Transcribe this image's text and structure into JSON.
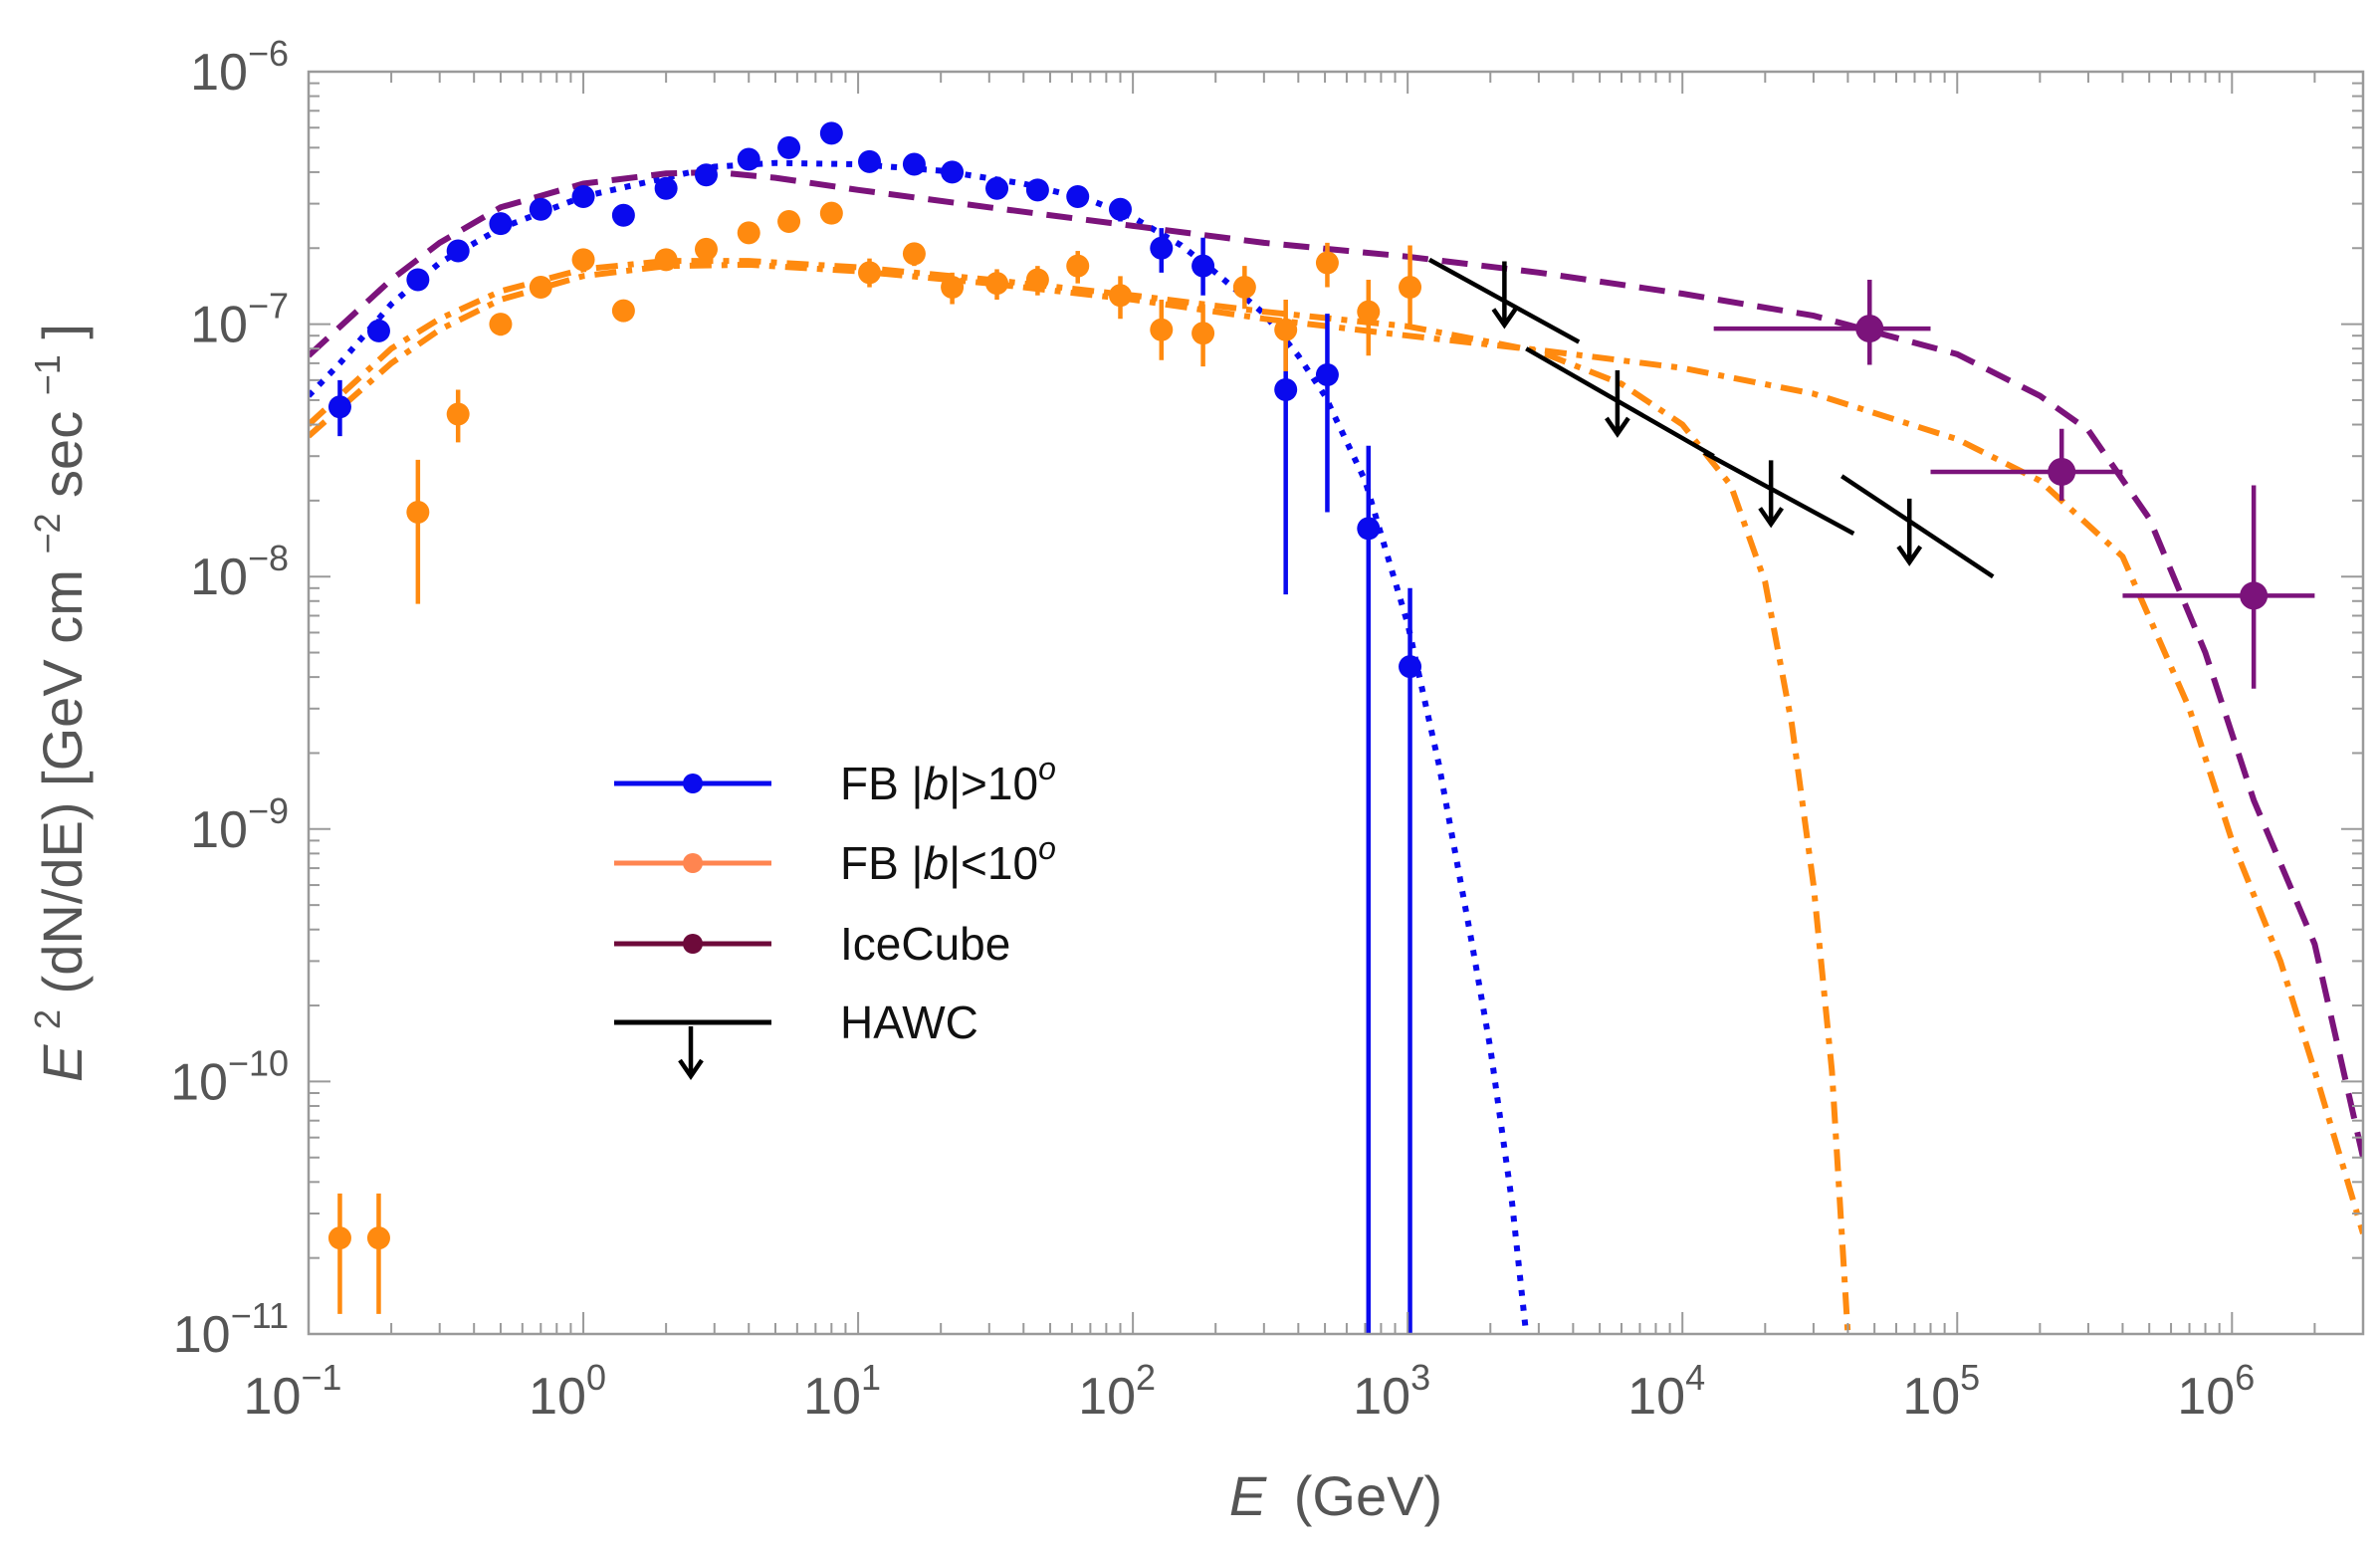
{
  "chart_data": {
    "type": "scatter",
    "xscale": "log",
    "yscale": "log",
    "xlim": [
      0.1,
      3000000
    ],
    "ylim": [
      1e-11,
      1e-06
    ],
    "xlabel": {
      "main": "E",
      "unit": "(GeV)"
    },
    "ylabel": {
      "sym": "E",
      "sup1": "2",
      "mid": "(dN/dE) [GeV cm",
      "sup2": "−2",
      "mid2": "sec",
      "sup3": "−1",
      "end": "]"
    },
    "x_ticks": [
      {
        "value": 0.1,
        "base": "10",
        "exp": "−1"
      },
      {
        "value": 1,
        "base": "10",
        "exp": "0"
      },
      {
        "value": 10,
        "base": "10",
        "exp": "1"
      },
      {
        "value": 100,
        "base": "10",
        "exp": "2"
      },
      {
        "value": 1000,
        "base": "10",
        "exp": "3"
      },
      {
        "value": 10000,
        "base": "10",
        "exp": "4"
      },
      {
        "value": 100000,
        "base": "10",
        "exp": "5"
      },
      {
        "value": 1000000,
        "base": "10",
        "exp": "6"
      }
    ],
    "y_ticks": [
      {
        "value": 1e-11,
        "base": "10",
        "exp": "−11"
      },
      {
        "value": 1e-10,
        "base": "10",
        "exp": "−10"
      },
      {
        "value": 1e-09,
        "base": "10",
        "exp": "−9"
      },
      {
        "value": 1e-08,
        "base": "10",
        "exp": "−8"
      },
      {
        "value": 1e-07,
        "base": "10",
        "exp": "−7"
      },
      {
        "value": 1e-06,
        "base": "10",
        "exp": "−6"
      }
    ],
    "colors": {
      "fb_high": "#0a0aee",
      "fb_low": "#ff8a0f",
      "icecube": "#7b137b",
      "hawc": "#000000",
      "legend_fb_low": "#ff8550",
      "legend_icecube": "#6d0a3a",
      "axis": "#9a9a9a",
      "label": "#555555"
    },
    "legend": [
      {
        "label": "FB |b|>10",
        "sup": "o",
        "key": "fb_high"
      },
      {
        "label": "FB |b|<10",
        "sup": "o",
        "key": "fb_low"
      },
      {
        "label": "IceCube",
        "sup": "",
        "key": "icecube"
      },
      {
        "label": "HAWC",
        "sup": "",
        "key": "hawc"
      }
    ],
    "series": [
      {
        "name": "FB |b|>10o",
        "key": "fb_high",
        "points": [
          {
            "x": 0.13,
            "y": 4.7e-08,
            "ylo": 3.6e-08,
            "yhi": 6e-08
          },
          {
            "x": 0.18,
            "y": 9.4e-08,
            "ylo": 8.5e-08,
            "yhi": 1.05e-07
          },
          {
            "x": 0.25,
            "y": 1.5e-07,
            "ylo": 1.38e-07,
            "yhi": 1.62e-07
          },
          {
            "x": 0.35,
            "y": 1.95e-07,
            "ylo": 1.8e-07,
            "yhi": 2.1e-07
          },
          {
            "x": 0.5,
            "y": 2.5e-07,
            "ylo": 2.35e-07,
            "yhi": 2.7e-07
          },
          {
            "x": 0.7,
            "y": 2.85e-07,
            "ylo": 2.7e-07,
            "yhi": 3e-07
          },
          {
            "x": 1.0,
            "y": 3.2e-07,
            "ylo": 3.05e-07,
            "yhi": 3.35e-07
          },
          {
            "x": 1.4,
            "y": 2.7e-07,
            "ylo": 2.55e-07,
            "yhi": 2.85e-07
          },
          {
            "x": 2.0,
            "y": 3.45e-07,
            "ylo": 3.3e-07,
            "yhi": 3.6e-07
          },
          {
            "x": 2.8,
            "y": 3.9e-07,
            "ylo": 3.7e-07,
            "yhi": 4.1e-07
          },
          {
            "x": 4.0,
            "y": 4.5e-07,
            "ylo": 4.3e-07,
            "yhi": 4.7e-07
          },
          {
            "x": 5.6,
            "y": 5e-07,
            "ylo": 4.8e-07,
            "yhi": 5.25e-07
          },
          {
            "x": 8.0,
            "y": 5.7e-07,
            "ylo": 5.45e-07,
            "yhi": 5.95e-07
          },
          {
            "x": 11,
            "y": 4.4e-07,
            "ylo": 4.2e-07,
            "yhi": 4.6e-07
          },
          {
            "x": 16,
            "y": 4.3e-07,
            "ylo": 4.1e-07,
            "yhi": 4.5e-07
          },
          {
            "x": 22,
            "y": 4e-07,
            "ylo": 3.8e-07,
            "yhi": 4.2e-07
          },
          {
            "x": 32,
            "y": 3.45e-07,
            "ylo": 3.25e-07,
            "yhi": 3.65e-07
          },
          {
            "x": 45,
            "y": 3.4e-07,
            "ylo": 3.2e-07,
            "yhi": 3.6e-07
          },
          {
            "x": 63,
            "y": 3.2e-07,
            "ylo": 2.95e-07,
            "yhi": 3.45e-07
          },
          {
            "x": 90,
            "y": 2.85e-07,
            "ylo": 2.55e-07,
            "yhi": 3.15e-07
          },
          {
            "x": 127,
            "y": 2e-07,
            "ylo": 1.6e-07,
            "yhi": 2.4e-07
          },
          {
            "x": 180,
            "y": 1.7e-07,
            "ylo": 1.3e-07,
            "yhi": 2.2e-07
          },
          {
            "x": 360,
            "y": 5.5e-08,
            "ylo": 8.5e-09,
            "yhi": 1e-07
          },
          {
            "x": 510,
            "y": 6.3e-08,
            "ylo": 1.8e-08,
            "yhi": 1.1e-07
          },
          {
            "x": 720,
            "y": 1.55e-08,
            "ylo": 1e-11,
            "yhi": 3.3e-08
          },
          {
            "x": 1020,
            "y": 4.4e-09,
            "ylo": 1e-11,
            "yhi": 9e-09
          }
        ]
      },
      {
        "name": "FB |b|<10o",
        "key": "fb_low",
        "points": [
          {
            "x": 0.13,
            "y": 2.4e-11,
            "ylo": 1.2e-11,
            "yhi": 3.6e-11
          },
          {
            "x": 0.18,
            "y": 2.4e-11,
            "ylo": 1.2e-11,
            "yhi": 3.6e-11
          },
          {
            "x": 0.25,
            "y": 1.8e-08,
            "ylo": 7.8e-09,
            "yhi": 2.9e-08
          },
          {
            "x": 0.35,
            "y": 4.4e-08,
            "ylo": 3.4e-08,
            "yhi": 5.5e-08
          },
          {
            "x": 0.5,
            "y": 1e-07,
            "ylo": 9e-08,
            "yhi": 1.1e-07
          },
          {
            "x": 0.7,
            "y": 1.4e-07,
            "ylo": 1.3e-07,
            "yhi": 1.52e-07
          },
          {
            "x": 1.0,
            "y": 1.8e-07,
            "ylo": 1.68e-07,
            "yhi": 1.92e-07
          },
          {
            "x": 1.4,
            "y": 1.13e-07,
            "ylo": 1.02e-07,
            "yhi": 1.25e-07
          },
          {
            "x": 2.0,
            "y": 1.8e-07,
            "ylo": 1.68e-07,
            "yhi": 1.92e-07
          },
          {
            "x": 2.8,
            "y": 1.98e-07,
            "ylo": 1.85e-07,
            "yhi": 2.1e-07
          },
          {
            "x": 4.0,
            "y": 2.3e-07,
            "ylo": 2.15e-07,
            "yhi": 2.45e-07
          },
          {
            "x": 5.6,
            "y": 2.55e-07,
            "ylo": 2.4e-07,
            "yhi": 2.7e-07
          },
          {
            "x": 8.0,
            "y": 2.75e-07,
            "ylo": 2.6e-07,
            "yhi": 2.9e-07
          },
          {
            "x": 11,
            "y": 1.6e-07,
            "ylo": 1.4e-07,
            "yhi": 1.82e-07
          },
          {
            "x": 16,
            "y": 1.9e-07,
            "ylo": 1.7e-07,
            "yhi": 2.1e-07
          },
          {
            "x": 22,
            "y": 1.4e-07,
            "ylo": 1.2e-07,
            "yhi": 1.6e-07
          },
          {
            "x": 32,
            "y": 1.45e-07,
            "ylo": 1.25e-07,
            "yhi": 1.65e-07
          },
          {
            "x": 45,
            "y": 1.5e-07,
            "ylo": 1.3e-07,
            "yhi": 1.7e-07
          },
          {
            "x": 63,
            "y": 1.7e-07,
            "ylo": 1.45e-07,
            "yhi": 1.95e-07
          },
          {
            "x": 90,
            "y": 1.3e-07,
            "ylo": 1.05e-07,
            "yhi": 1.55e-07
          },
          {
            "x": 127,
            "y": 9.5e-08,
            "ylo": 7.2e-08,
            "yhi": 1.25e-07
          },
          {
            "x": 180,
            "y": 9.2e-08,
            "ylo": 6.8e-08,
            "yhi": 1.2e-07
          },
          {
            "x": 255,
            "y": 1.4e-07,
            "ylo": 1.15e-07,
            "yhi": 1.7e-07
          },
          {
            "x": 360,
            "y": 9.5e-08,
            "ylo": 6.5e-08,
            "yhi": 1.25e-07
          },
          {
            "x": 510,
            "y": 1.75e-07,
            "ylo": 1.4e-07,
            "yhi": 2.1e-07
          },
          {
            "x": 720,
            "y": 1.12e-07,
            "ylo": 7.5e-08,
            "yhi": 1.5e-07
          },
          {
            "x": 1020,
            "y": 1.4e-07,
            "ylo": 1e-07,
            "yhi": 2.05e-07
          }
        ]
      },
      {
        "name": "IceCube",
        "key": "icecube",
        "points": [
          {
            "x": 48000,
            "y": 9.6e-08,
            "ylo": 6.9e-08,
            "yhi": 1.5e-07,
            "xlo": 13000,
            "xhi": 80000
          },
          {
            "x": 240000,
            "y": 2.6e-08,
            "ylo": 2e-08,
            "yhi": 3.85e-08,
            "xlo": 80000,
            "xhi": 400000
          },
          {
            "x": 1200000,
            "y": 8.4e-09,
            "ylo": 3.6e-09,
            "yhi": 2.3e-08,
            "xlo": 400000,
            "xhi": 2000000
          }
        ]
      },
      {
        "name": "HAWC",
        "key": "hawc",
        "upper_limits": [
          {
            "x1": 1200,
            "x2": 4200,
            "y1": 1.8e-07,
            "y2": 8.5e-08,
            "xa": 2250,
            "ya": 1.35e-07
          },
          {
            "x1": 2700,
            "x2": 13000,
            "y1": 8e-08,
            "y2": 3e-08,
            "xa": 5800,
            "ya": 5e-08
          },
          {
            "x1": 12000,
            "x2": 42000,
            "y1": 3.1e-08,
            "y2": 1.48e-08,
            "xa": 21000,
            "ya": 2.2e-08
          },
          {
            "x1": 38000,
            "x2": 135000,
            "y1": 2.5e-08,
            "y2": 1e-08,
            "xa": 67000,
            "ya": 1.55e-08
          }
        ]
      }
    ],
    "model_curves": [
      {
        "name": "FB |b|>10o model",
        "key": "fb_high",
        "style": "dotted",
        "points": [
          [
            0.1,
            5.2e-08
          ],
          [
            0.13,
            7e-08
          ],
          [
            0.2,
            1.2e-07
          ],
          [
            0.3,
            1.75e-07
          ],
          [
            0.5,
            2.4e-07
          ],
          [
            1,
            3.2e-07
          ],
          [
            2,
            3.8e-07
          ],
          [
            3,
            4.2e-07
          ],
          [
            5,
            4.35e-07
          ],
          [
            10,
            4.3e-07
          ],
          [
            20,
            4.05e-07
          ],
          [
            40,
            3.6e-07
          ],
          [
            70,
            3.1e-07
          ],
          [
            100,
            2.65e-07
          ],
          [
            150,
            2.05e-07
          ],
          [
            200,
            1.6e-07
          ],
          [
            300,
            1.1e-07
          ],
          [
            400,
            7.5e-08
          ],
          [
            500,
            5.2e-08
          ],
          [
            700,
            2.4e-08
          ],
          [
            1000,
            6.5e-09
          ],
          [
            1300,
            1.8e-09
          ],
          [
            1700,
            3.7e-10
          ],
          [
            2000,
            1.35e-10
          ],
          [
            2400,
            3.3e-11
          ],
          [
            2700,
            1e-11
          ]
        ]
      },
      {
        "name": "FB |b|<10o model A",
        "key": "fb_low",
        "style": "dashdot",
        "points": [
          [
            0.1,
            4e-08
          ],
          [
            0.2,
            8e-08
          ],
          [
            0.3,
            1.05e-07
          ],
          [
            0.5,
            1.35e-07
          ],
          [
            1,
            1.65e-07
          ],
          [
            2,
            1.78e-07
          ],
          [
            4,
            1.78e-07
          ],
          [
            10,
            1.68e-07
          ],
          [
            30,
            1.5e-07
          ],
          [
            100,
            1.3e-07
          ],
          [
            300,
            1.12e-07
          ],
          [
            1000,
            9.8e-08
          ],
          [
            3000,
            7.8e-08
          ],
          [
            6000,
            5.8e-08
          ],
          [
            10000,
            4e-08
          ],
          [
            15000,
            2.3e-08
          ],
          [
            20000,
            9.5e-09
          ],
          [
            25000,
            2.6e-09
          ],
          [
            30000,
            6e-10
          ],
          [
            35000,
            1.1e-10
          ],
          [
            40000,
            1e-11
          ]
        ]
      },
      {
        "name": "FB |b|<10o model B",
        "key": "fb_low",
        "style": "dashdot",
        "points": [
          [
            0.1,
            3.6e-08
          ],
          [
            0.2,
            7e-08
          ],
          [
            0.3,
            9.5e-08
          ],
          [
            0.5,
            1.25e-07
          ],
          [
            1,
            1.55e-07
          ],
          [
            2,
            1.7e-07
          ],
          [
            4,
            1.72e-07
          ],
          [
            10,
            1.62e-07
          ],
          [
            30,
            1.45e-07
          ],
          [
            100,
            1.25e-07
          ],
          [
            300,
            1.05e-07
          ],
          [
            1000,
            9e-08
          ],
          [
            3000,
            7.9e-08
          ],
          [
            10000,
            6.7e-08
          ],
          [
            30000,
            5.3e-08
          ],
          [
            100000,
            3.5e-08
          ],
          [
            200000,
            2.4e-08
          ],
          [
            400000,
            1.2e-08
          ],
          [
            700000,
            3e-09
          ],
          [
            1000000,
            9e-10
          ],
          [
            1500000,
            3e-10
          ],
          [
            2000000,
            1.1e-10
          ],
          [
            3000000,
            2.5e-11
          ]
        ]
      },
      {
        "name": "IceCube model",
        "key": "icecube",
        "style": "dashed",
        "points": [
          [
            0.1,
            7.5e-08
          ],
          [
            0.2,
            1.5e-07
          ],
          [
            0.3,
            2.1e-07
          ],
          [
            0.5,
            2.9e-07
          ],
          [
            1,
            3.6e-07
          ],
          [
            2,
            3.95e-07
          ],
          [
            3,
            4e-07
          ],
          [
            5,
            3.8e-07
          ],
          [
            10,
            3.4e-07
          ],
          [
            30,
            2.9e-07
          ],
          [
            100,
            2.45e-07
          ],
          [
            300,
            2.1e-07
          ],
          [
            1000,
            1.85e-07
          ],
          [
            3000,
            1.6e-07
          ],
          [
            10000,
            1.32e-07
          ],
          [
            30000,
            1.08e-07
          ],
          [
            100000,
            7.6e-08
          ],
          [
            200000,
            5.2e-08
          ],
          [
            300000,
            3.8e-08
          ],
          [
            500000,
            1.7e-08
          ],
          [
            800000,
            5e-09
          ],
          [
            1200000,
            1.3e-09
          ],
          [
            2000000,
            3.5e-10
          ],
          [
            3000000,
            5e-11
          ]
        ]
      }
    ]
  }
}
